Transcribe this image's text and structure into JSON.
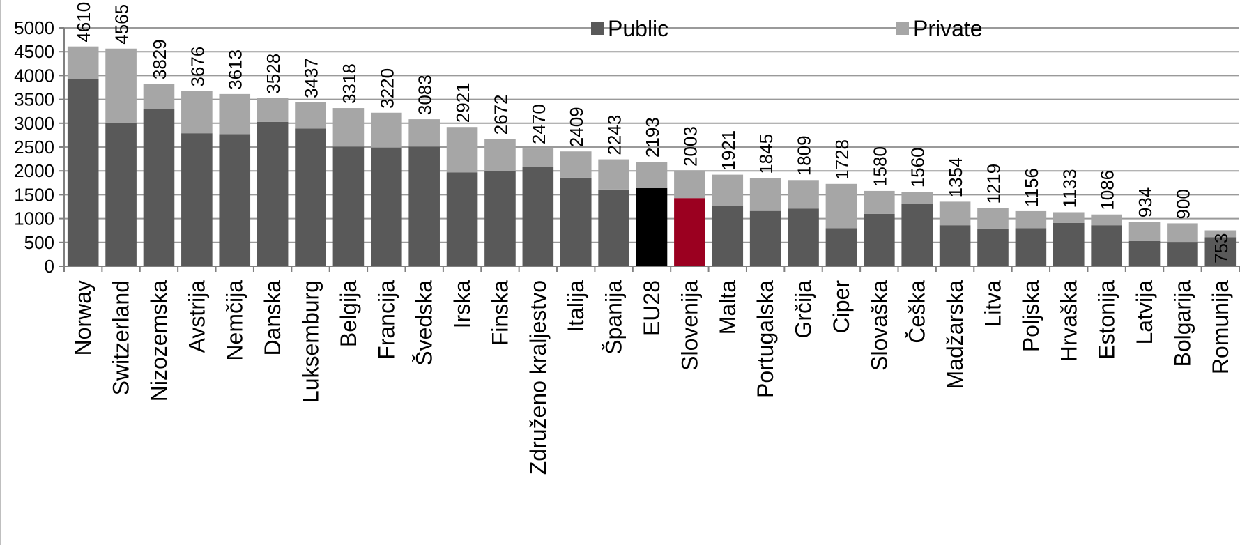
{
  "chart_data": {
    "type": "bar",
    "stacked": true,
    "title": "",
    "xlabel": "",
    "ylabel": "",
    "ylim": [
      0,
      5000
    ],
    "yticks": [
      0,
      500,
      1000,
      1500,
      2000,
      2500,
      3000,
      3500,
      4000,
      4500,
      5000
    ],
    "grid": true,
    "legend_position": "top",
    "categories": [
      "Norway",
      "Switzerland",
      "Nizozemska",
      "Avstrija",
      "Nemčija",
      "Danska",
      "Luksemburg",
      "Belgija",
      "Francija",
      "Švedska",
      "Irska",
      "Finska",
      "Združeno kraljestvo",
      "Italija",
      "Španija",
      "EU28",
      "Slovenija",
      "Malta",
      "Portugalska",
      "Grčija",
      "Ciper",
      "Slovaška",
      "Češka",
      "Madžarska",
      "Litva",
      "Poljska",
      "Hrvaška",
      "Estonija",
      "Latvija",
      "Bolgarija",
      "Romunija"
    ],
    "series": [
      {
        "name": "Public",
        "color": "#595959",
        "values": [
          3920,
          3000,
          3290,
          2790,
          2770,
          3030,
          2890,
          2510,
          2490,
          2510,
          1970,
          2000,
          2080,
          1860,
          1610,
          1640,
          1430,
          1270,
          1160,
          1210,
          800,
          1100,
          1310,
          860,
          790,
          800,
          910,
          860,
          530,
          510,
          610
        ]
      },
      {
        "name": "Private",
        "color": "#a6a6a6",
        "values": [
          690,
          1565,
          539,
          886,
          843,
          498,
          547,
          808,
          730,
          573,
          951,
          672,
          390,
          549,
          633,
          553,
          573,
          651,
          685,
          599,
          928,
          480,
          250,
          494,
          429,
          356,
          223,
          226,
          404,
          390,
          143
        ]
      }
    ],
    "totals": [
      4610,
      4565,
      3829,
      3676,
      3613,
      3528,
      3437,
      3318,
      3220,
      3083,
      2921,
      2672,
      2470,
      2409,
      2243,
      2193,
      2003,
      1921,
      1845,
      1809,
      1728,
      1580,
      1560,
      1354,
      1219,
      1156,
      1133,
      1086,
      934,
      900,
      753
    ],
    "highlight": [
      {
        "category": "EU28",
        "series": "Public",
        "color": "#000000"
      },
      {
        "category": "Slovenija",
        "series": "Public",
        "color": "#9b0020"
      }
    ]
  }
}
